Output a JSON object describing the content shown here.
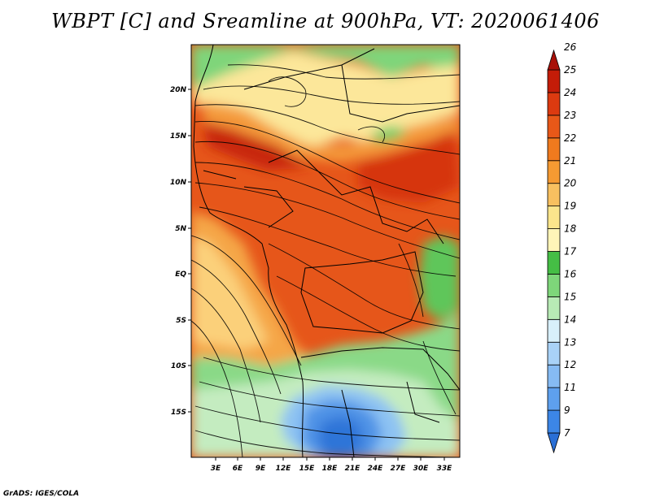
{
  "title": "WBPT [C] and Sreamline at 900hPa, VT: 2020061406",
  "credit": "GrADS: IGES/COLA",
  "map": {
    "lat_ticks": [
      "20N",
      "15N",
      "10N",
      "5N",
      "EQ",
      "5S",
      "10S",
      "15S"
    ],
    "lon_ticks": [
      "3E",
      "6E",
      "9E",
      "12E",
      "15E",
      "18E",
      "21E",
      "24E",
      "27E",
      "30E",
      "33E"
    ]
  },
  "colorbar": {
    "labels": [
      "7",
      "9",
      "11",
      "12",
      "13",
      "14",
      "15",
      "16",
      "17",
      "18",
      "19",
      "20",
      "21",
      "22",
      "23",
      "24",
      "25",
      "26"
    ],
    "colors": [
      "#2a6fd6",
      "#3c86e6",
      "#5ea0ee",
      "#86bbf3",
      "#a9d2f7",
      "#d8f0fb",
      "#b8eab5",
      "#7ed67a",
      "#45be45",
      "#fff5b8",
      "#fbe58c",
      "#f8c060",
      "#f59a32",
      "#f07a1e",
      "#e85818",
      "#dc3a10",
      "#c41c08",
      "#a81008"
    ]
  }
}
